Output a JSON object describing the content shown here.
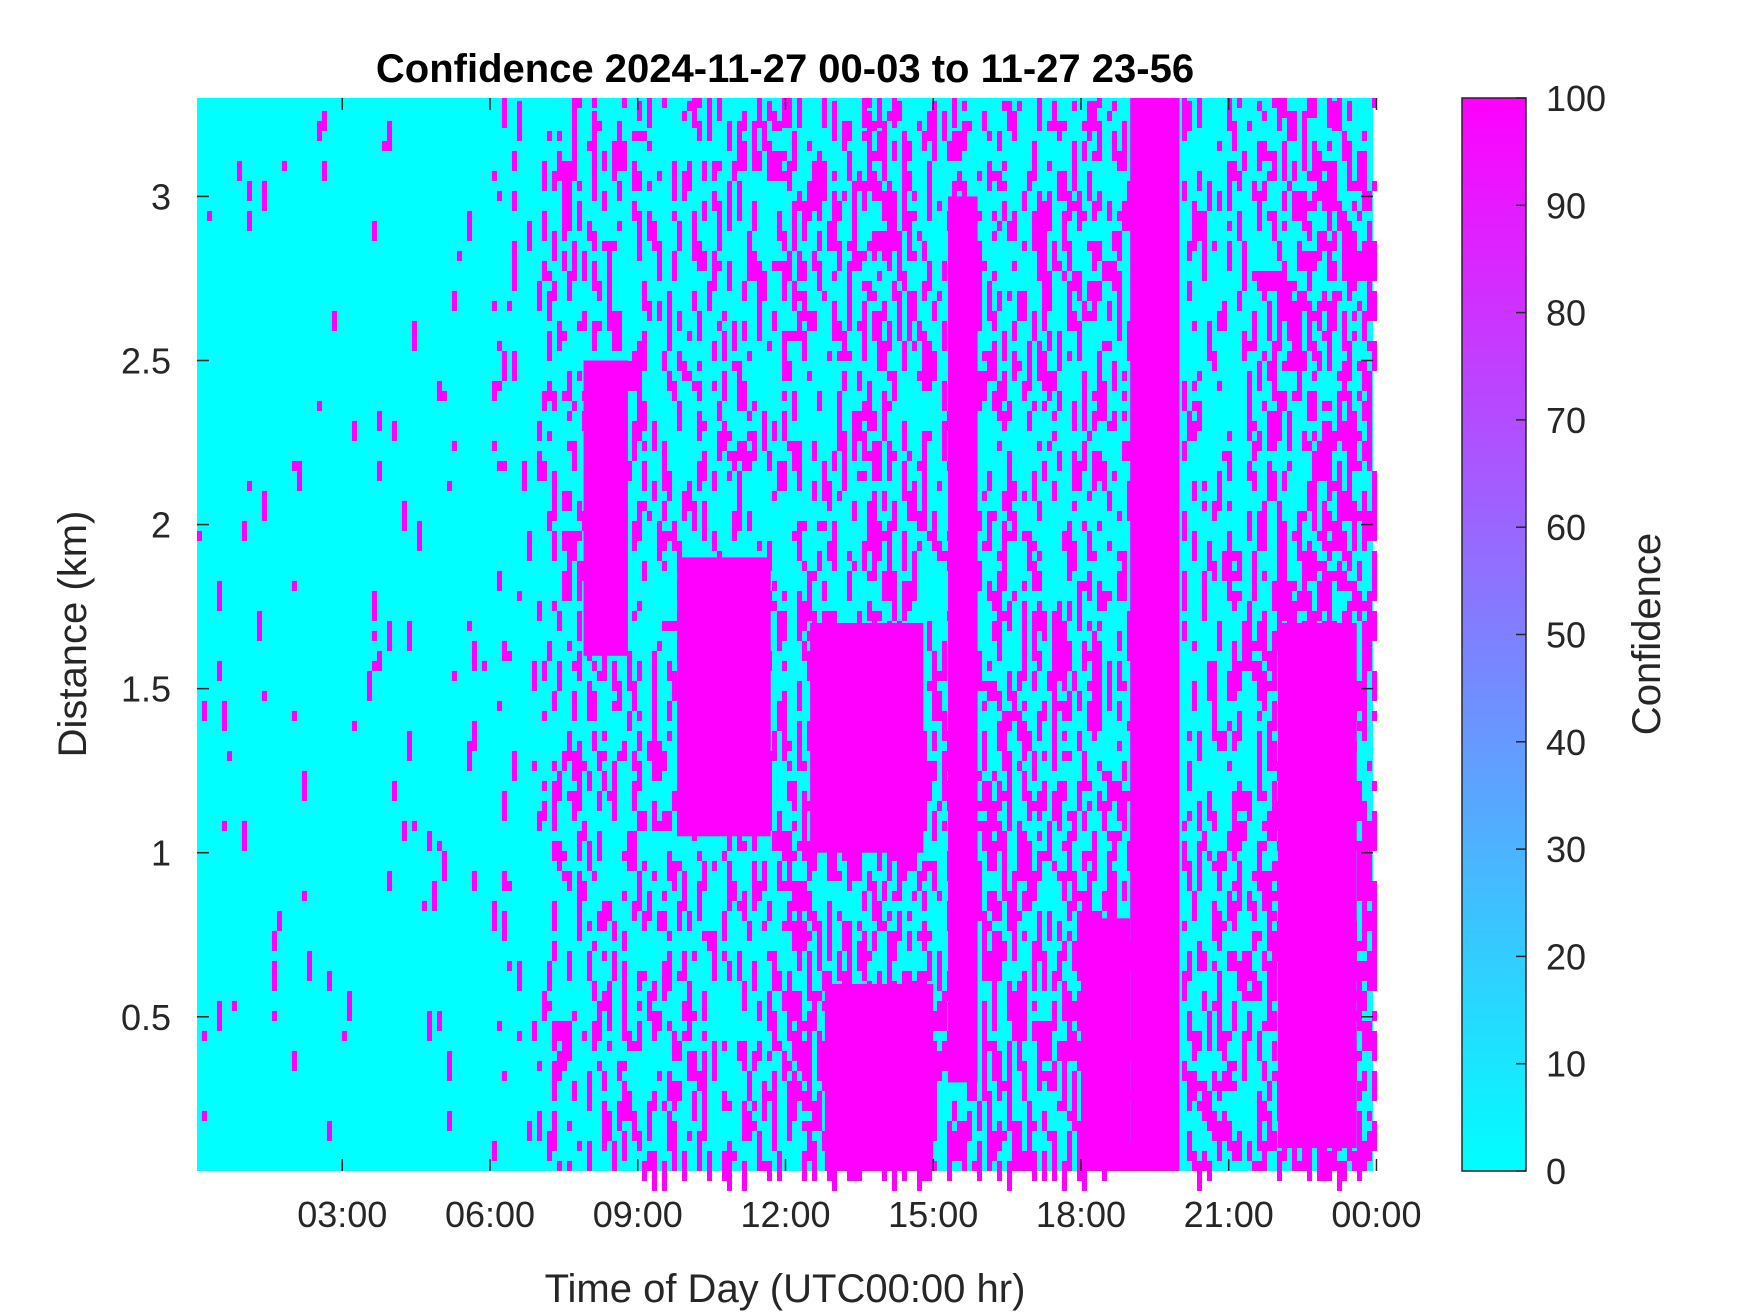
{
  "chart_data": {
    "type": "heatmap",
    "title": "Confidence 2024-11-27 00-03 to 11-27 23-56",
    "xlabel": "Time of Day (UTC00:00 hr)",
    "ylabel": "Distance (km)",
    "x_ticks": [
      "03:00",
      "06:00",
      "09:00",
      "12:00",
      "15:00",
      "18:00",
      "21:00",
      "00:00"
    ],
    "y_ticks": [
      "0.5",
      "1",
      "1.5",
      "2",
      "2.5",
      "3"
    ],
    "colorbar": {
      "label": "Confidence",
      "ticks": [
        "0",
        "10",
        "20",
        "30",
        "40",
        "50",
        "60",
        "70",
        "80",
        "90",
        "100"
      ],
      "min": 0,
      "max": 100,
      "colormap": [
        "#00ffff",
        "#ff00ff"
      ]
    },
    "x_range_hours": [
      0.05,
      23.93
    ],
    "y_range_km": [
      0.03,
      3.3
    ],
    "values_note": "",
    "confidence_100_regions": [
      {
        "t_start": 19.0,
        "t_end": 20.0,
        "d_start": 0.03,
        "d_end": 3.3
      },
      {
        "t_start": 9.8,
        "t_end": 11.7,
        "d_start": 1.05,
        "d_end": 1.9
      },
      {
        "t_start": 12.5,
        "t_end": 14.8,
        "d_start": 1.0,
        "d_end": 1.7
      },
      {
        "t_start": 15.3,
        "t_end": 15.9,
        "d_start": 0.3,
        "d_end": 3.0
      },
      {
        "t_start": 22.0,
        "t_end": 23.6,
        "d_start": 0.1,
        "d_end": 1.7
      },
      {
        "t_start": 18.0,
        "t_end": 19.0,
        "d_start": 0.03,
        "d_end": 0.8
      },
      {
        "t_start": 7.9,
        "t_end": 8.8,
        "d_start": 1.6,
        "d_end": 2.5
      },
      {
        "t_start": 12.8,
        "t_end": 15.0,
        "d_start": 0.03,
        "d_end": 0.6
      }
    ]
  }
}
